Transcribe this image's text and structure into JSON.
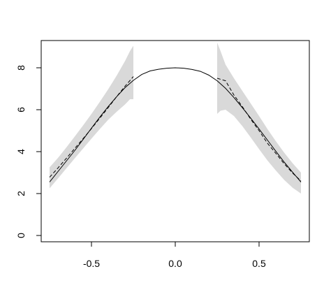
{
  "chart_data": {
    "type": "line",
    "xlim": [
      -0.8,
      0.8
    ],
    "ylim": [
      -0.3,
      9.3
    ],
    "x_ticks": [
      {
        "value": -0.5,
        "label": "-0.5"
      },
      {
        "value": 0.0,
        "label": "0.0"
      },
      {
        "value": 0.5,
        "label": "0.5"
      }
    ],
    "y_ticks": [
      {
        "value": 0,
        "label": "0"
      },
      {
        "value": 2,
        "label": "2"
      },
      {
        "value": 4,
        "label": "4"
      },
      {
        "value": 6,
        "label": "6"
      },
      {
        "value": 8,
        "label": "8"
      }
    ],
    "grid": false,
    "legend": "none",
    "colors": {
      "band": "#d9d9d9",
      "line": "#000000"
    },
    "series": [
      {
        "style": "solid",
        "points": [
          [
            -0.75,
            2.55
          ],
          [
            -0.7,
            3.05
          ],
          [
            -0.65,
            3.55
          ],
          [
            -0.6,
            4.05
          ],
          [
            -0.55,
            4.58
          ],
          [
            -0.5,
            5.12
          ],
          [
            -0.45,
            5.65
          ],
          [
            -0.4,
            6.15
          ],
          [
            -0.35,
            6.62
          ],
          [
            -0.3,
            7.05
          ],
          [
            -0.25,
            7.4
          ],
          [
            -0.2,
            7.68
          ],
          [
            -0.15,
            7.85
          ],
          [
            -0.1,
            7.93
          ],
          [
            -0.05,
            7.98
          ],
          [
            0.0,
            8.0
          ],
          [
            0.05,
            7.98
          ],
          [
            0.1,
            7.92
          ],
          [
            0.15,
            7.83
          ],
          [
            0.2,
            7.65
          ],
          [
            0.25,
            7.38
          ],
          [
            0.3,
            7.02
          ],
          [
            0.35,
            6.58
          ],
          [
            0.4,
            6.1
          ],
          [
            0.45,
            5.6
          ],
          [
            0.5,
            5.08
          ],
          [
            0.55,
            4.55
          ],
          [
            0.6,
            4.02
          ],
          [
            0.65,
            3.5
          ],
          [
            0.7,
            3.02
          ],
          [
            0.75,
            2.55
          ]
        ]
      },
      {
        "style": "dashed",
        "points": [
          [
            -0.75,
            2.78
          ],
          [
            -0.7,
            3.22
          ],
          [
            -0.65,
            3.68
          ],
          [
            -0.6,
            4.15
          ],
          [
            -0.55,
            4.62
          ],
          [
            -0.5,
            5.1
          ],
          [
            -0.45,
            5.6
          ],
          [
            -0.4,
            6.1
          ],
          [
            -0.35,
            6.62
          ],
          [
            -0.3,
            7.12
          ],
          [
            -0.25,
            7.58
          ]
        ]
      },
      {
        "style": "dashed",
        "points": [
          [
            0.25,
            7.5
          ],
          [
            0.3,
            7.38
          ],
          [
            0.35,
            6.7
          ],
          [
            0.4,
            6.15
          ],
          [
            0.45,
            5.55
          ],
          [
            0.5,
            5.0
          ],
          [
            0.55,
            4.4
          ],
          [
            0.6,
            3.92
          ],
          [
            0.65,
            3.42
          ],
          [
            0.7,
            2.98
          ],
          [
            0.75,
            2.6
          ]
        ]
      }
    ],
    "bands": [
      {
        "x": [
          -0.75,
          -0.7,
          -0.65,
          -0.6,
          -0.55,
          -0.5,
          -0.45,
          -0.4,
          -0.35,
          -0.3,
          -0.27,
          -0.25
        ],
        "lower": [
          2.25,
          2.72,
          3.2,
          3.68,
          4.15,
          4.62,
          5.08,
          5.52,
          5.9,
          6.25,
          6.5,
          6.5
        ],
        "upper": [
          3.25,
          3.7,
          4.2,
          4.72,
          5.25,
          5.8,
          6.38,
          6.98,
          7.62,
          8.32,
          8.8,
          9.05
        ]
      },
      {
        "x": [
          0.25,
          0.27,
          0.3,
          0.35,
          0.4,
          0.45,
          0.5,
          0.55,
          0.6,
          0.65,
          0.7,
          0.75
        ],
        "lower": [
          5.8,
          5.95,
          6.0,
          5.7,
          5.22,
          4.68,
          4.12,
          3.58,
          3.1,
          2.65,
          2.28,
          2.0
        ],
        "upper": [
          9.2,
          8.8,
          8.15,
          7.5,
          6.9,
          6.3,
          5.7,
          5.08,
          4.5,
          3.95,
          3.45,
          3.0
        ]
      }
    ]
  }
}
